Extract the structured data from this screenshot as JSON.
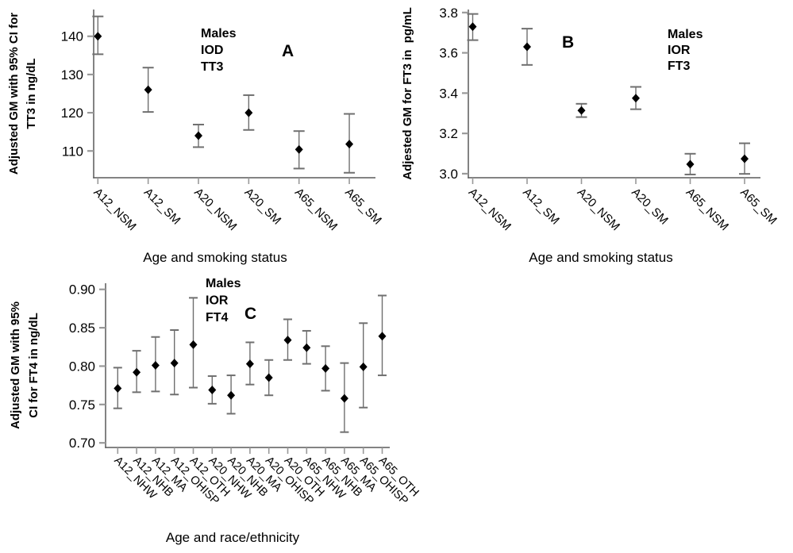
{
  "figure": {
    "background": "#ffffff",
    "colors": {
      "marker": "#000000",
      "error_bar": "#6f6f6f",
      "axis_line": "#5a5a5a",
      "tick_mark": "#999999",
      "text": "#000000"
    }
  },
  "chart_data": [
    {
      "id": "panel_a",
      "type": "scatter",
      "panel_label": "A",
      "annotation_lines": [
        "Males",
        "IOD",
        "TT3"
      ],
      "ylabel_lines": [
        "Adjusted GM with 95% CI for",
        "TT3 in ng/dL"
      ],
      "xlabel": "Age and smoking status",
      "categories": [
        "A12_NSM",
        "A12_SM",
        "A20_NSM",
        "A20_SM",
        "A65_NSM",
        "A65_SM"
      ],
      "values": [
        140.0,
        126.0,
        114.0,
        120.0,
        110.4,
        111.8
      ],
      "ci_low": [
        135.3,
        120.2,
        111.0,
        115.5,
        105.4,
        104.3
      ],
      "ci_high": [
        145.2,
        131.8,
        116.9,
        124.6,
        115.2,
        119.7
      ],
      "ytick_values": [
        110,
        120,
        130,
        140
      ],
      "ytick_labels": [
        "110",
        "120",
        "130",
        "140"
      ],
      "ylim": [
        103.0,
        147.0
      ],
      "grid": false,
      "legend": null
    },
    {
      "id": "panel_b",
      "type": "scatter",
      "panel_label": "B",
      "annotation_lines": [
        "Males",
        "IOR",
        "FT3"
      ],
      "ylabel_lines": [
        "Adjested GM for FT3 in  pg/mL"
      ],
      "xlabel": "Age and smoking status",
      "categories": [
        "A12_NSM",
        "A12_SM",
        "A20_NSM",
        "A20_SM",
        "A65_NSM",
        "A65_SM"
      ],
      "values": [
        3.73,
        3.63,
        3.314,
        3.375,
        3.047,
        3.074
      ],
      "ci_low": [
        3.663,
        3.54,
        3.281,
        3.32,
        2.996,
        2.999
      ],
      "ci_high": [
        3.793,
        3.72,
        3.347,
        3.431,
        3.099,
        3.151
      ],
      "ytick_values": [
        3.0,
        3.2,
        3.4,
        3.6,
        3.8
      ],
      "ytick_labels": [
        "3.0",
        "3.2",
        "3.4",
        "3.6",
        "3.8"
      ],
      "ylim": [
        2.98,
        3.815
      ],
      "grid": false,
      "legend": null
    },
    {
      "id": "panel_c",
      "type": "scatter",
      "panel_label": "C",
      "annotation_lines": [
        "Males",
        "IOR",
        "FT4"
      ],
      "ylabel_lines": [
        "Adjusted GM with 95%",
        "CI for FT4 in ng/dL"
      ],
      "xlabel": "Age and race/ethnicity",
      "categories": [
        "A12_NHW",
        "A12_NHB",
        "A12_MA",
        "A12_OHISP",
        "A12_OTH",
        "A20_NHW",
        "A20_NHB",
        "A20_MA",
        "A20_OHISP",
        "A20_OTH",
        "A65_NHW",
        "A65_NHB",
        "A65_MA",
        "A65_OHISP",
        "A65_OTH"
      ],
      "values": [
        0.771,
        0.792,
        0.801,
        0.804,
        0.828,
        0.769,
        0.762,
        0.803,
        0.785,
        0.834,
        0.824,
        0.797,
        0.758,
        0.799,
        0.839
      ],
      "ci_low": [
        0.745,
        0.766,
        0.767,
        0.763,
        0.772,
        0.751,
        0.738,
        0.776,
        0.762,
        0.808,
        0.803,
        0.768,
        0.714,
        0.746,
        0.788
      ],
      "ci_high": [
        0.798,
        0.82,
        0.838,
        0.847,
        0.889,
        0.787,
        0.788,
        0.831,
        0.808,
        0.861,
        0.846,
        0.826,
        0.804,
        0.856,
        0.892
      ],
      "ytick_values": [
        0.7,
        0.75,
        0.8,
        0.85,
        0.9
      ],
      "ytick_labels": [
        "0.70",
        "0.75",
        "0.80",
        "0.85",
        "0.90"
      ],
      "ylim": [
        0.694,
        0.908
      ],
      "grid": false,
      "legend": null
    }
  ]
}
